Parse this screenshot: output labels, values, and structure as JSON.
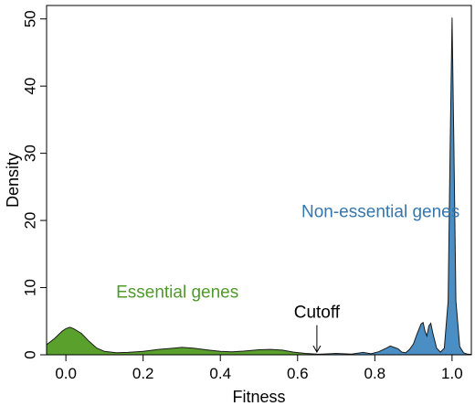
{
  "chart_data": {
    "type": "area",
    "xlabel": "Fitness",
    "ylabel": "Density",
    "xlim": [
      -0.05,
      1.05
    ],
    "ylim": [
      0,
      52
    ],
    "x_ticks": [
      0.0,
      0.2,
      0.4,
      0.6,
      0.8,
      1.0
    ],
    "x_tick_labels": [
      "0.0",
      "0.2",
      "0.4",
      "0.6",
      "0.8",
      "1.0"
    ],
    "y_ticks": [
      0,
      10,
      20,
      30,
      40,
      50
    ],
    "y_tick_labels": [
      "0",
      "10",
      "20",
      "30",
      "40",
      "50"
    ],
    "grid": false,
    "series": [
      {
        "name": "Essential genes",
        "color": "#5aa02c",
        "points": [
          [
            -0.05,
            1.5
          ],
          [
            -0.03,
            2.4
          ],
          [
            -0.01,
            3.5
          ],
          [
            0.0,
            3.9
          ],
          [
            0.01,
            4.1
          ],
          [
            0.02,
            3.9
          ],
          [
            0.04,
            3.2
          ],
          [
            0.06,
            2.0
          ],
          [
            0.08,
            1.0
          ],
          [
            0.1,
            0.5
          ],
          [
            0.13,
            0.3
          ],
          [
            0.16,
            0.35
          ],
          [
            0.2,
            0.5
          ],
          [
            0.24,
            0.8
          ],
          [
            0.28,
            1.0
          ],
          [
            0.3,
            1.1
          ],
          [
            0.33,
            1.0
          ],
          [
            0.37,
            0.7
          ],
          [
            0.4,
            0.5
          ],
          [
            0.43,
            0.45
          ],
          [
            0.46,
            0.55
          ],
          [
            0.5,
            0.75
          ],
          [
            0.53,
            0.8
          ],
          [
            0.56,
            0.7
          ],
          [
            0.59,
            0.4
          ],
          [
            0.62,
            0.2
          ],
          [
            0.65,
            0.1
          ],
          [
            0.7,
            0.05
          ],
          [
            0.8,
            0.05
          ],
          [
            0.9,
            0.05
          ],
          [
            1.0,
            0.05
          ],
          [
            1.05,
            0.05
          ]
        ]
      },
      {
        "name": "Non-essential genes",
        "color": "#4a8ec4",
        "points": [
          [
            0.62,
            0.0
          ],
          [
            0.66,
            0.08
          ],
          [
            0.7,
            0.2
          ],
          [
            0.74,
            0.1
          ],
          [
            0.77,
            0.35
          ],
          [
            0.79,
            0.15
          ],
          [
            0.81,
            0.45
          ],
          [
            0.83,
            1.0
          ],
          [
            0.84,
            1.3
          ],
          [
            0.85,
            1.1
          ],
          [
            0.86,
            0.9
          ],
          [
            0.87,
            0.4
          ],
          [
            0.88,
            0.3
          ],
          [
            0.89,
            0.8
          ],
          [
            0.9,
            1.6
          ],
          [
            0.91,
            3.2
          ],
          [
            0.92,
            4.6
          ],
          [
            0.925,
            4.8
          ],
          [
            0.93,
            3.5
          ],
          [
            0.935,
            2.8
          ],
          [
            0.94,
            4.3
          ],
          [
            0.945,
            4.7
          ],
          [
            0.95,
            3.3
          ],
          [
            0.96,
            1.0
          ],
          [
            0.97,
            0.4
          ],
          [
            0.98,
            1.0
          ],
          [
            0.99,
            8.0
          ],
          [
            0.995,
            30.0
          ],
          [
            1.0,
            50.2
          ],
          [
            1.005,
            30.0
          ],
          [
            1.01,
            8.0
          ],
          [
            1.02,
            1.2
          ],
          [
            1.03,
            0.3
          ],
          [
            1.04,
            0.1
          ],
          [
            1.05,
            0.05
          ]
        ]
      }
    ],
    "annotations": [
      {
        "text": "Essential genes",
        "color": "#4f9a2a",
        "x": 0.13,
        "y": 8.5
      },
      {
        "text": "Non-essential genes",
        "color": "#3576ad",
        "x": 0.61,
        "y": 20.5
      },
      {
        "text": "Cutoff",
        "color": "#000000",
        "x": 0.65,
        "y": 5.5,
        "arrow_to": 0.65
      }
    ]
  }
}
